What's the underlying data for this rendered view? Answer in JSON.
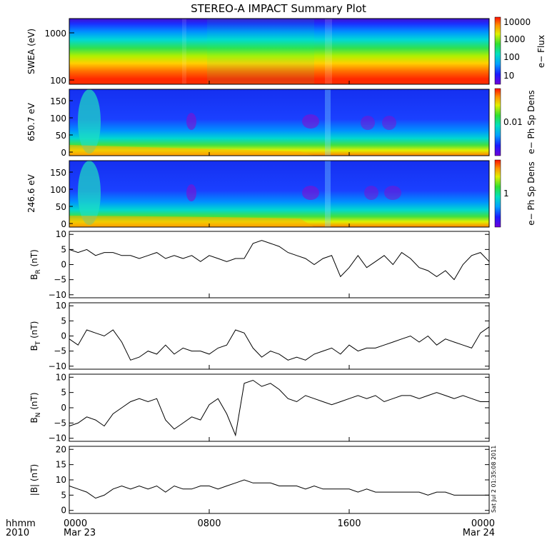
{
  "title": "STEREO-A IMPACT Summary Plot",
  "stamp": "Sat Jul  2 01:35:08 2011",
  "time_axis": {
    "row_label_top": "hhmm",
    "row_label_bottom": "2010",
    "ticks": [
      {
        "t": 0,
        "top": "0000",
        "bottom": "Mar 23"
      },
      {
        "t": 8,
        "top": "0800",
        "bottom": ""
      },
      {
        "t": 16,
        "top": "1600",
        "bottom": ""
      },
      {
        "t": 24,
        "top": "0000",
        "bottom": "Mar 24"
      }
    ],
    "range_hours": [
      0,
      24
    ]
  },
  "chart_data": [
    {
      "type": "heatmap",
      "ylabel": "SWEA (eV)",
      "yscale": "log",
      "ylim": [
        95,
        2100
      ],
      "yticks": [
        "100",
        "1000"
      ],
      "colorbar": {
        "label": "e− Flux",
        "scale": "log",
        "ticks": [
          "10",
          "100",
          "1000",
          "10000"
        ]
      }
    },
    {
      "type": "heatmap",
      "ylabel": "650.7 eV",
      "ylim": [
        -8,
        180
      ],
      "yticks": [
        "0",
        "50",
        "100",
        "150"
      ],
      "colorbar": {
        "label": "e− Ph Sp Dens",
        "scale": "log",
        "ticks": [
          "0.01"
        ]
      }
    },
    {
      "type": "heatmap",
      "ylabel": "246.6 eV",
      "ylim": [
        -8,
        180
      ],
      "yticks": [
        "0",
        "50",
        "100",
        "150"
      ],
      "colorbar": {
        "label": "e− Ph Sp Dens",
        "scale": "log",
        "ticks": [
          "1"
        ]
      }
    },
    {
      "type": "line",
      "ylabel": "B_R (nT)",
      "ylim": [
        -11,
        11
      ],
      "yticks": [
        "10",
        "5",
        "0",
        "−5",
        "−10"
      ],
      "x": [
        0,
        0.5,
        1,
        1.5,
        2,
        2.5,
        3,
        3.5,
        4,
        4.5,
        5,
        5.5,
        6,
        6.5,
        7,
        7.5,
        8,
        8.5,
        9,
        9.5,
        10,
        10.5,
        11,
        11.5,
        12,
        12.5,
        13,
        13.5,
        14,
        14.5,
        15,
        15.5,
        16,
        16.5,
        17,
        17.5,
        18,
        18.5,
        19,
        19.5,
        20,
        20.5,
        21,
        21.5,
        22,
        22.5,
        23,
        23.5,
        24
      ],
      "y": [
        5,
        4,
        5,
        3,
        4,
        4,
        3,
        3,
        2,
        3,
        4,
        2,
        3,
        2,
        3,
        1,
        3,
        2,
        1,
        2,
        2,
        7,
        8,
        7,
        6,
        4,
        3,
        2,
        0,
        2,
        3,
        -4,
        -1,
        3,
        -1,
        1,
        3,
        0,
        4,
        2,
        -1,
        -2,
        -4,
        -2,
        -5,
        0,
        3,
        4,
        1
      ]
    },
    {
      "type": "line",
      "ylabel": "B_T (nT)",
      "ylim": [
        -11,
        11
      ],
      "yticks": [
        "10",
        "5",
        "0",
        "−5",
        "−10"
      ],
      "x": [
        0,
        0.5,
        1,
        1.5,
        2,
        2.5,
        3,
        3.5,
        4,
        4.5,
        5,
        5.5,
        6,
        6.5,
        7,
        7.5,
        8,
        8.5,
        9,
        9.5,
        10,
        10.5,
        11,
        11.5,
        12,
        12.5,
        13,
        13.5,
        14,
        14.5,
        15,
        15.5,
        16,
        16.5,
        17,
        17.5,
        18,
        18.5,
        19,
        19.5,
        20,
        20.5,
        21,
        21.5,
        22,
        22.5,
        23,
        23.5,
        24
      ],
      "y": [
        -1,
        -3,
        2,
        1,
        0,
        2,
        -2,
        -8,
        -7,
        -5,
        -6,
        -3,
        -6,
        -4,
        -5,
        -5,
        -6,
        -4,
        -3,
        2,
        1,
        -4,
        -7,
        -5,
        -6,
        -8,
        -7,
        -8,
        -6,
        -5,
        -4,
        -6,
        -3,
        -5,
        -4,
        -4,
        -3,
        -2,
        -1,
        0,
        -2,
        0,
        -3,
        -1,
        -2,
        -3,
        -4,
        1,
        3
      ]
    },
    {
      "type": "line",
      "ylabel": "B_N (nT)",
      "ylim": [
        -11,
        11
      ],
      "yticks": [
        "10",
        "5",
        "0",
        "−5",
        "−10"
      ],
      "x": [
        0,
        0.5,
        1,
        1.5,
        2,
        2.5,
        3,
        3.5,
        4,
        4.5,
        5,
        5.5,
        6,
        6.5,
        7,
        7.5,
        8,
        8.5,
        9,
        9.5,
        10,
        10.5,
        11,
        11.5,
        12,
        12.5,
        13,
        13.5,
        14,
        14.5,
        15,
        15.5,
        16,
        16.5,
        17,
        17.5,
        18,
        18.5,
        19,
        19.5,
        20,
        20.5,
        21,
        21.5,
        22,
        22.5,
        23,
        23.5,
        24
      ],
      "y": [
        -6,
        -5,
        -3,
        -4,
        -6,
        -2,
        0,
        2,
        3,
        2,
        3,
        -4,
        -7,
        -5,
        -3,
        -4,
        1,
        3,
        -2,
        -9,
        8,
        9,
        7,
        8,
        6,
        3,
        2,
        4,
        3,
        2,
        1,
        2,
        3,
        4,
        3,
        4,
        2,
        3,
        4,
        4,
        3,
        4,
        5,
        4,
        3,
        4,
        3,
        2,
        2
      ]
    },
    {
      "type": "line",
      "ylabel": "|B| (nT)",
      "ylim": [
        -1,
        21
      ],
      "yticks": [
        "20",
        "15",
        "10",
        "5",
        "0"
      ],
      "x": [
        0,
        0.5,
        1,
        1.5,
        2,
        2.5,
        3,
        3.5,
        4,
        4.5,
        5,
        5.5,
        6,
        6.5,
        7,
        7.5,
        8,
        8.5,
        9,
        9.5,
        10,
        10.5,
        11,
        11.5,
        12,
        12.5,
        13,
        13.5,
        14,
        14.5,
        15,
        15.5,
        16,
        16.5,
        17,
        17.5,
        18,
        18.5,
        19,
        19.5,
        20,
        20.5,
        21,
        21.5,
        22,
        22.5,
        23,
        23.5,
        24
      ],
      "y": [
        8,
        7,
        6,
        4,
        5,
        7,
        8,
        7,
        8,
        7,
        8,
        6,
        8,
        7,
        7,
        8,
        8,
        7,
        8,
        9,
        10,
        9,
        9,
        9,
        8,
        8,
        8,
        7,
        8,
        7,
        7,
        7,
        7,
        6,
        7,
        6,
        6,
        6,
        6,
        6,
        6,
        5,
        6,
        6,
        5,
        5,
        5,
        5,
        5
      ]
    }
  ]
}
